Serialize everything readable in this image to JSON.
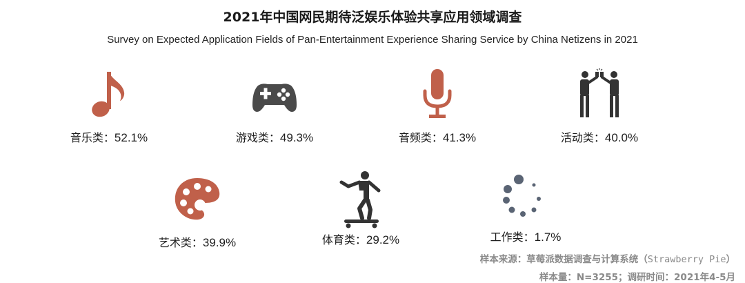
{
  "title": "2021年中国网民期待泛娱乐体验共享应用领域调查",
  "subtitle": "Survey on Expected Application Fields of Pan-Entertainment Experience Sharing Service by China Netizens in 2021",
  "colors": {
    "accent": "#c0604a",
    "dark": "#4a4a4a",
    "muted": "#8a8a8a",
    "loader": "#5a6474"
  },
  "chart_data": {
    "type": "table",
    "title": "2021年中国网民期待泛娱乐体验共享应用领域调查",
    "unit": "%",
    "categories": [
      "音乐类",
      "游戏类",
      "音频类",
      "活动类",
      "艺术类",
      "体育类",
      "工作类"
    ],
    "values": [
      52.1,
      49.3,
      41.3,
      40.0,
      39.9,
      29.2,
      1.7
    ],
    "items": [
      {
        "icon": "music-note-icon",
        "name": "音乐类",
        "value": 52.1,
        "value_text": "52.1%",
        "separator": "："
      },
      {
        "icon": "gamepad-icon",
        "name": "游戏类",
        "value": 49.3,
        "value_text": "49.3%",
        "separator": "："
      },
      {
        "icon": "microphone-icon",
        "name": "音频类",
        "value": 41.3,
        "value_text": "41.3%",
        "separator": "："
      },
      {
        "icon": "people-toast-icon",
        "name": "活动类",
        "value": 40.0,
        "value_text": "40.0%",
        "separator": "："
      },
      {
        "icon": "palette-icon",
        "name": "艺术类",
        "value": 39.9,
        "value_text": "39.9%",
        "separator": "："
      },
      {
        "icon": "skateboarder-icon",
        "name": "体育类",
        "value": 29.2,
        "value_text": "29.2%",
        "separator": "："
      },
      {
        "icon": "loading-dots-icon",
        "name": "工作类",
        "value": 1.7,
        "value_text": "1.7%",
        "separator": "："
      }
    ]
  },
  "source": {
    "line1_prefix": "样本来源：草莓派数据调查与计算系统（",
    "line1_en": "Strawberry Pie",
    "line1_suffix": "）",
    "line2": "样本量：N=3255；调研时间：2021年4-5月"
  }
}
